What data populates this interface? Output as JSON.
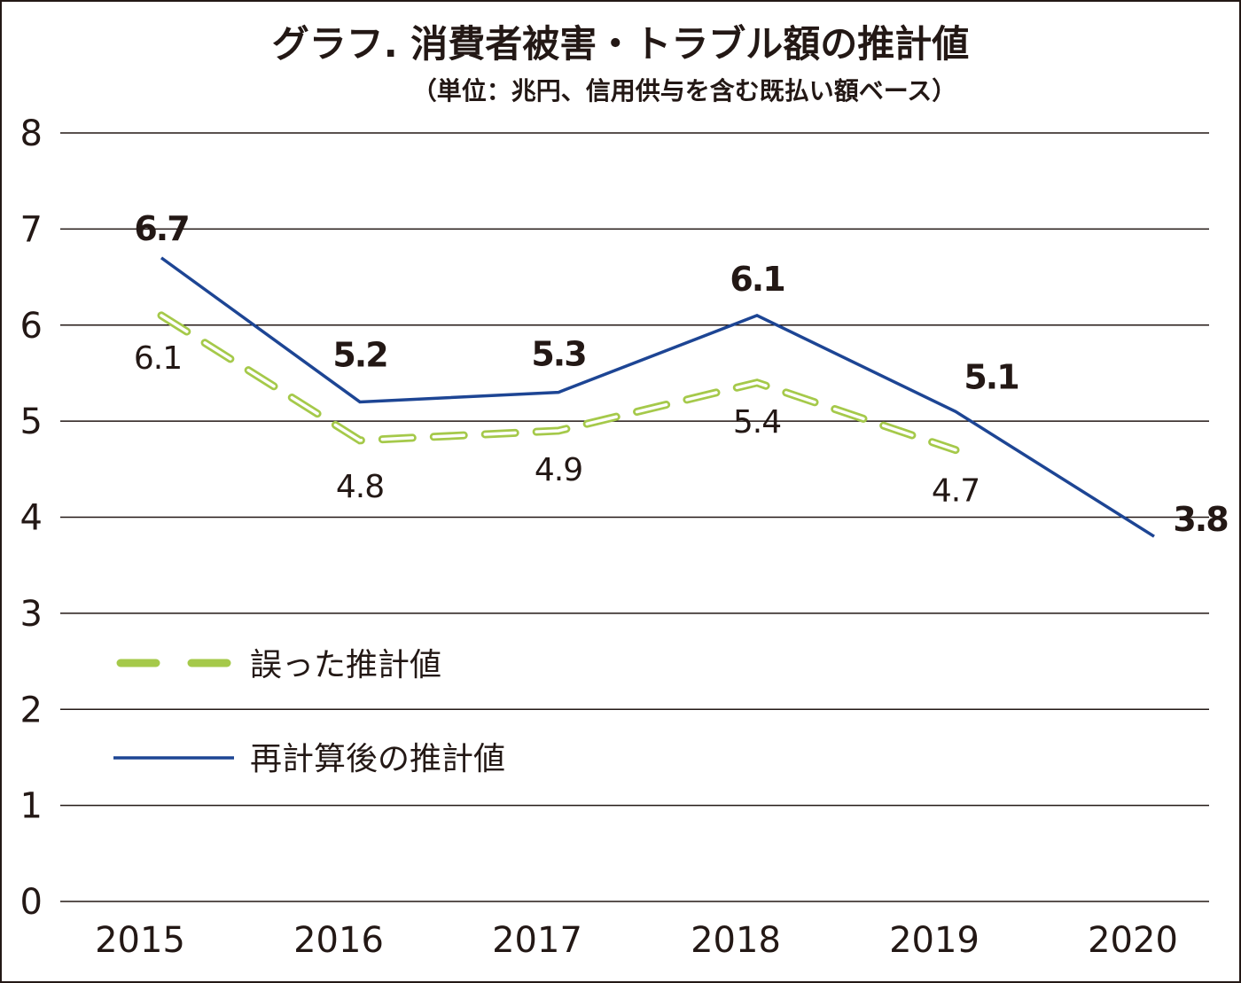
{
  "chart_data": {
    "type": "line",
    "title": "グラフ. 消費者被害・トラブル額の推計値",
    "subtitle": "（単位：兆円、信用供与を含む既払い額ベース）",
    "categories": [
      "2015",
      "2016",
      "2017",
      "2018",
      "2019",
      "2020"
    ],
    "ylim": [
      0,
      8
    ],
    "yticks": [
      "0",
      "1",
      "2",
      "3",
      "4",
      "5",
      "6",
      "7",
      "8"
    ],
    "grid": "horizontal",
    "legend_position": "left-middle",
    "series": [
      {
        "name": "誤った推計値",
        "style": "dashed",
        "color": "#a5c94a",
        "values": [
          6.1,
          4.8,
          4.9,
          5.4,
          4.7,
          null
        ],
        "labels": [
          "6.1",
          "4.8",
          "4.9",
          "5.4",
          "4.7",
          ""
        ]
      },
      {
        "name": "再計算後の推計値",
        "style": "solid",
        "color": "#1d4594",
        "values": [
          6.7,
          5.2,
          5.3,
          6.1,
          5.1,
          3.8
        ],
        "labels": [
          "6.7",
          "5.2",
          "5.3",
          "6.1",
          "5.1",
          "3.8"
        ]
      }
    ]
  }
}
